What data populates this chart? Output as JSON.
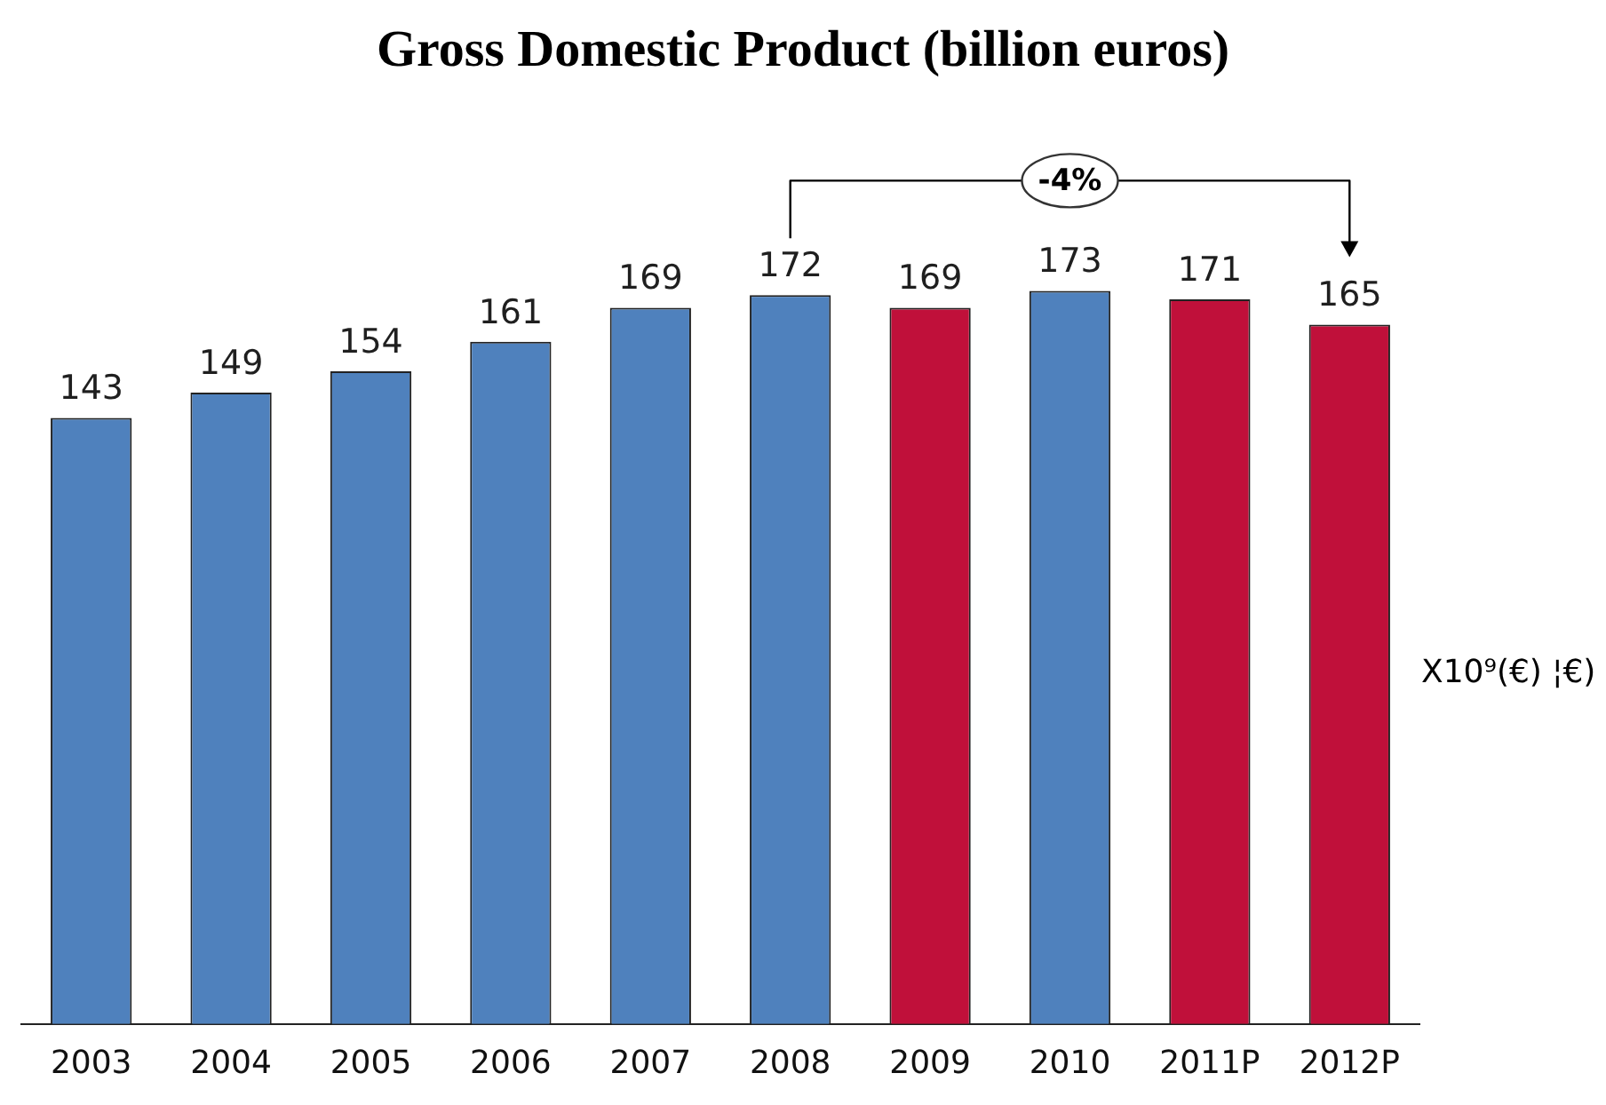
{
  "chart_data": {
    "type": "bar",
    "title": "Gross Domestic Product (billion euros)",
    "categories": [
      "2003",
      "2004",
      "2005",
      "2006",
      "2007",
      "2008",
      "2009",
      "2010",
      "2011P",
      "2012P"
    ],
    "values": [
      143,
      149,
      154,
      161,
      169,
      172,
      169,
      173,
      171,
      165
    ],
    "colors": [
      "#4f81bd",
      "#4f81bd",
      "#4f81bd",
      "#4f81bd",
      "#4f81bd",
      "#4f81bd",
      "#c0103a",
      "#4f81bd",
      "#c0103a",
      "#c0103a"
    ],
    "data_labels": true,
    "grid": false,
    "legend": false,
    "annotations": [
      "-4%",
      "X10⁹(€) ¦€)"
    ]
  }
}
